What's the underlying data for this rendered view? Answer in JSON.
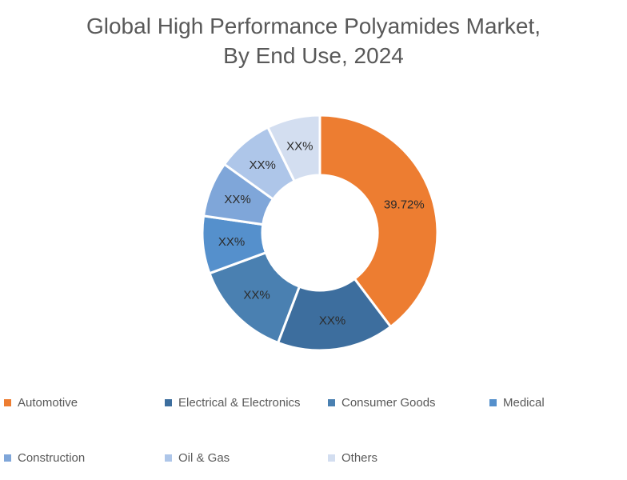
{
  "title": {
    "line1": "Global High Performance Polyamides Market,",
    "line2": "By End Use, 2024",
    "color": "#595959"
  },
  "chart_data": {
    "type": "pie",
    "subtype": "doughnut",
    "title": "Global High Performance Polyamides Market, By End Use, 2024",
    "categories": [
      "Automotive",
      "Electrical & Electronics",
      "Consumer Goods",
      "Medical",
      "Construction",
      "Oil & Gas",
      "Others"
    ],
    "displayed_labels": [
      "39.72%",
      "XX%",
      "XX%",
      "XX%",
      "XX%",
      "XX%",
      "XX%"
    ],
    "values_pct": [
      39.72,
      16.08,
      13.6,
      7.9,
      7.6,
      7.8,
      7.3
    ],
    "values_note": "Only Automotive share (39.72%) is shown; remaining slices are redacted as XX% and their percentages are estimated from arc sizes.",
    "colors": [
      "#ED7D31",
      "#3D6E9E",
      "#4A80B1",
      "#5590CC",
      "#7FA6D9",
      "#AEC6E9",
      "#D3DEF0"
    ],
    "start_angle_deg": 0,
    "direction": "clockwise",
    "donut_hole_ratio": 0.49,
    "slice_border_color": "#ffffff",
    "label_color": "#2b2b2b",
    "legend_position": "bottom"
  },
  "legend": {
    "items": [
      {
        "label": "Automotive"
      },
      {
        "label": "Electrical & Electronics"
      },
      {
        "label": "Consumer Goods"
      },
      {
        "label": "Medical"
      },
      {
        "label": "Construction"
      },
      {
        "label": "Oil & Gas"
      },
      {
        "label": "Others"
      }
    ]
  }
}
